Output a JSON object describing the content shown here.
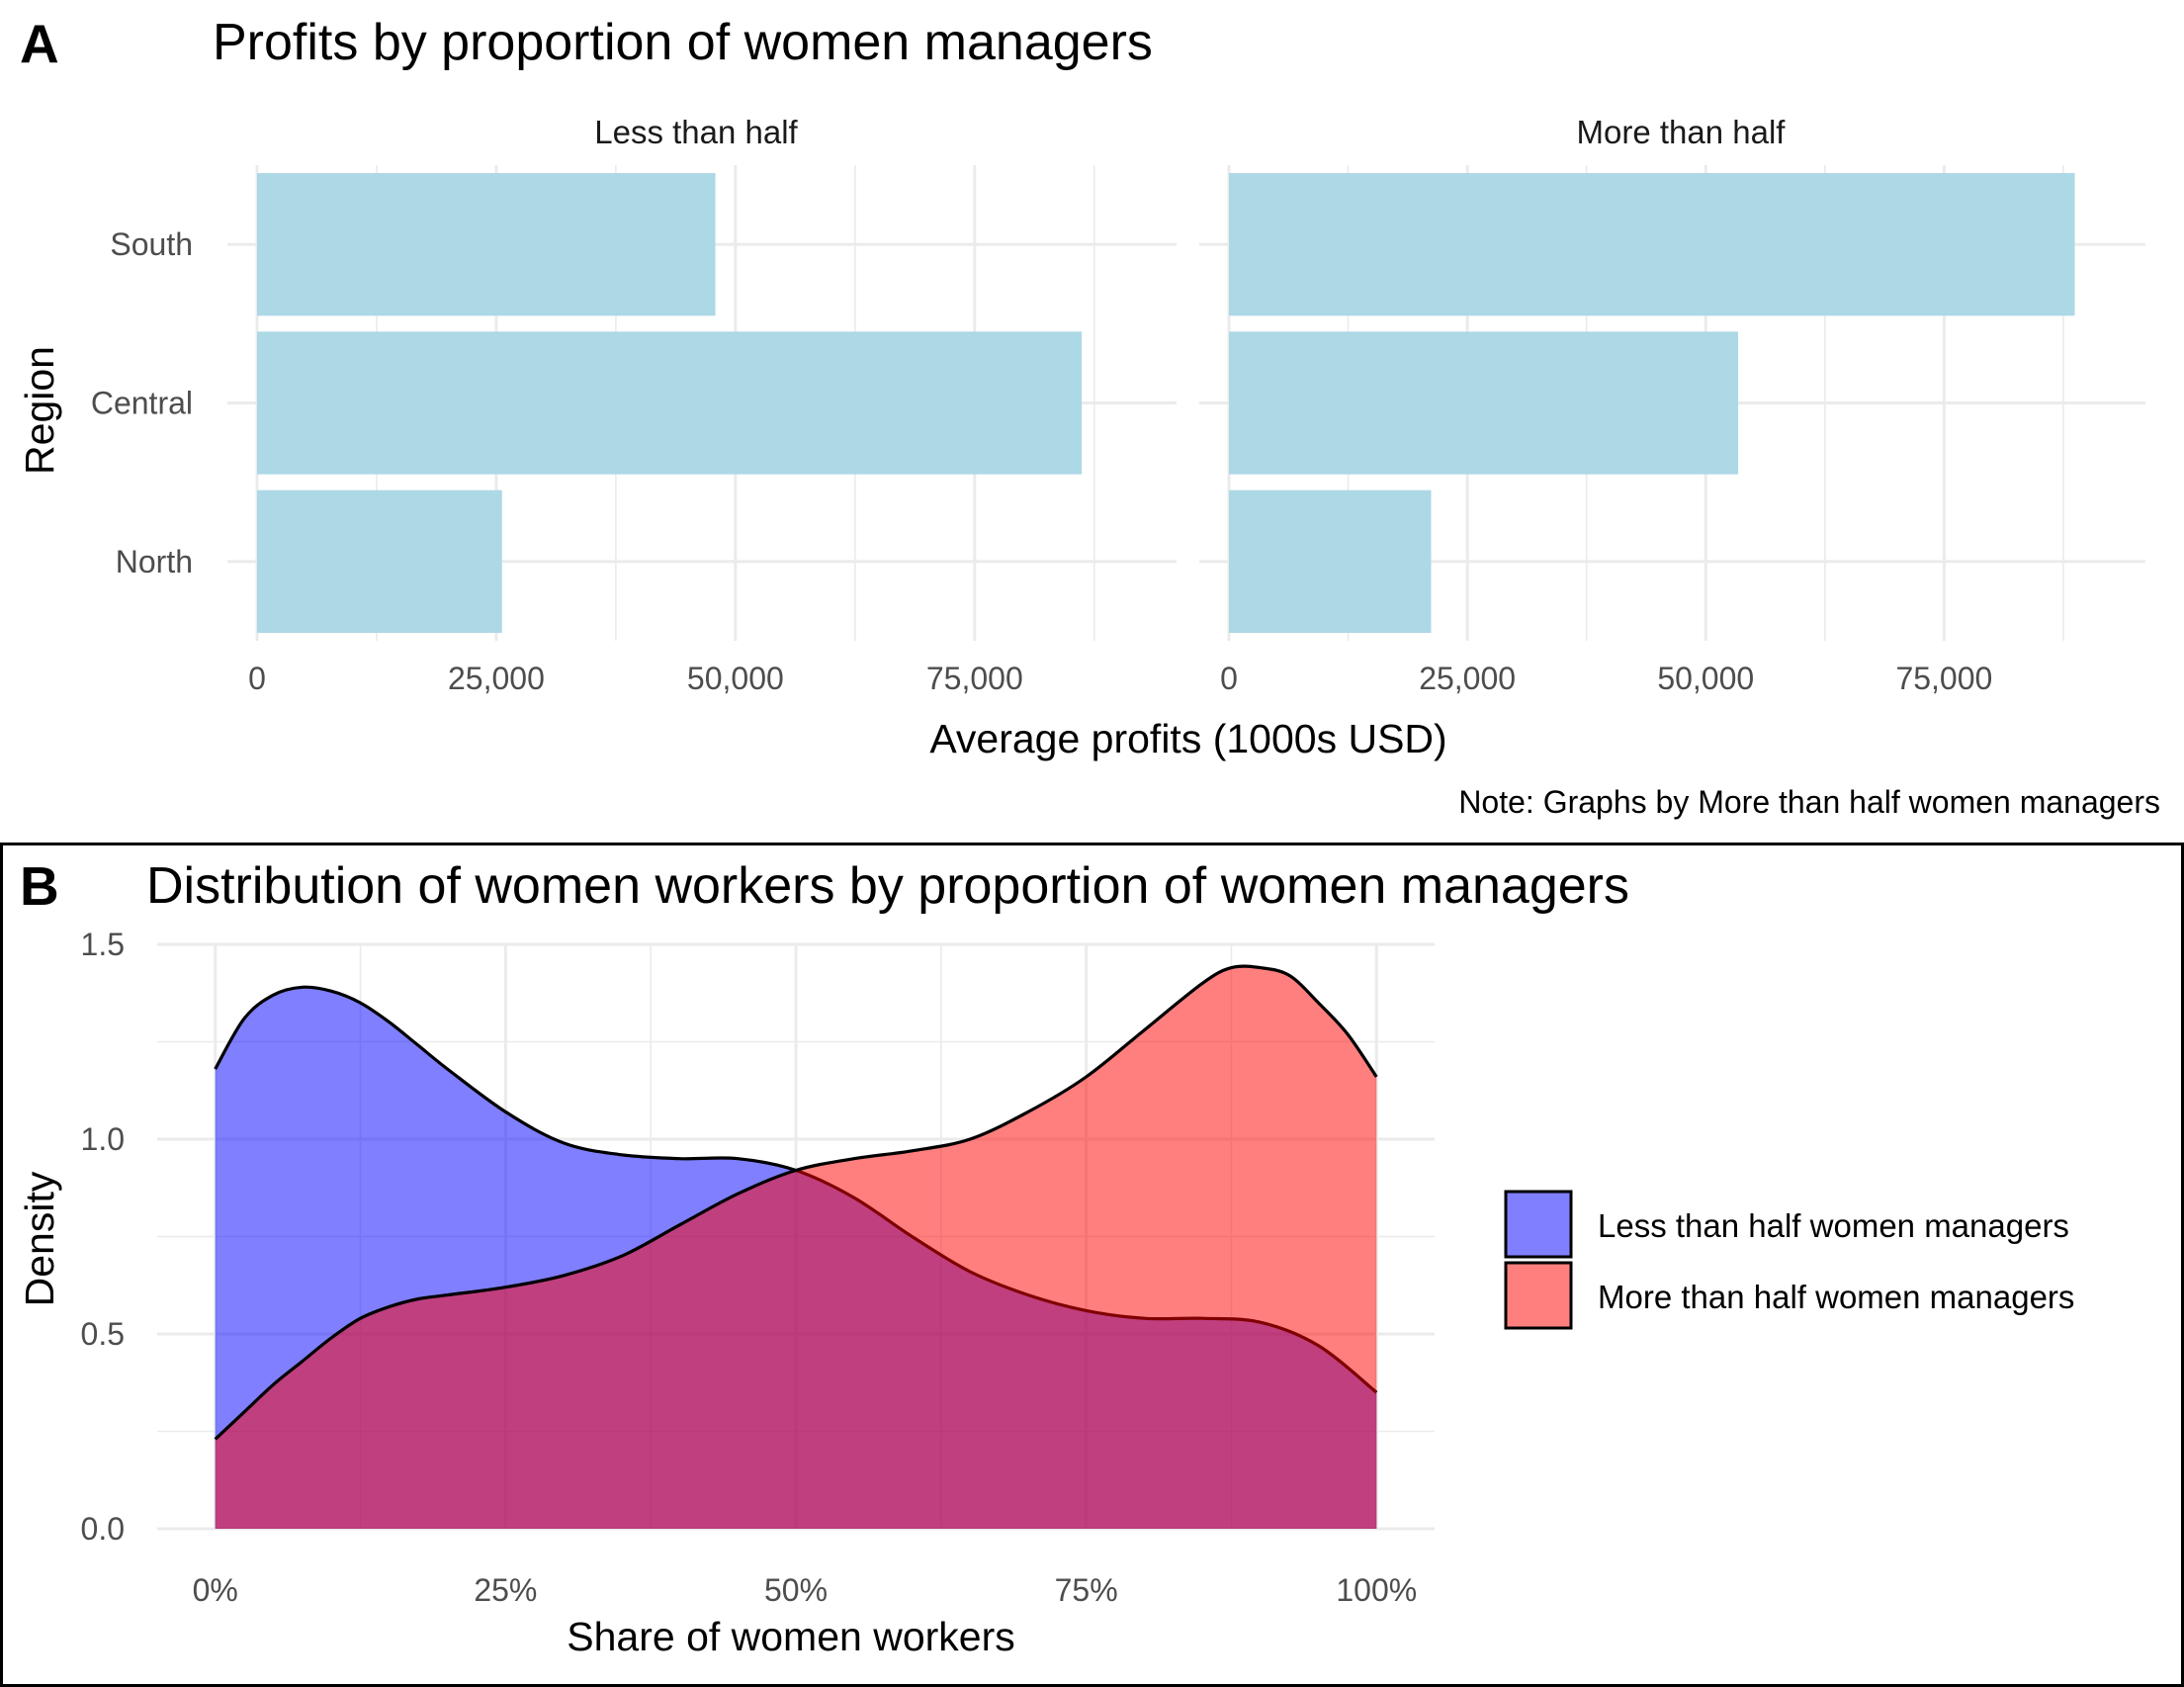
{
  "panel_a": {
    "letter": "A",
    "title": "Profits by proportion of women managers",
    "xlabel": "Average profits (1000s USD)",
    "ylabel": "Region",
    "note": "Note: Graphs by More than half women managers",
    "bar_color": "#add8e6"
  },
  "panel_b": {
    "letter": "B",
    "title": "Distribution of women workers by proportion of women managers",
    "xlabel": "Share of women workers",
    "ylabel": "Density",
    "colors": {
      "Less than half women managers": "#7f7fff",
      "More than half women managers": "#ff7f7f",
      "overlap": "#bf3f7f"
    }
  },
  "chart_data": [
    {
      "type": "bar",
      "orientation": "horizontal",
      "facets": [
        {
          "label": "Less than half",
          "categories": [
            "South",
            "Central",
            "North"
          ],
          "values": [
            47900,
            86200,
            25600
          ]
        },
        {
          "label": "More than half",
          "categories": [
            "South",
            "Central",
            "North"
          ],
          "values": [
            88700,
            53400,
            21200
          ]
        }
      ],
      "xlim": [
        0,
        93000
      ],
      "x_ticks": [
        0,
        25000,
        50000,
        75000
      ],
      "x_tick_labels": [
        "0",
        "25,000",
        "50,000",
        "75,000"
      ],
      "grid": true
    },
    {
      "type": "area",
      "subtype": "density",
      "x_ticks": [
        0,
        0.25,
        0.5,
        0.75,
        1.0
      ],
      "x_tick_labels": [
        "0%",
        "25%",
        "50%",
        "75%",
        "100%"
      ],
      "y_ticks": [
        0,
        0.5,
        1.0,
        1.5
      ],
      "y_tick_labels": [
        "0.0",
        "0.5",
        "1.0",
        "1.5"
      ],
      "xlim": [
        -0.05,
        1.05
      ],
      "ylim": [
        0,
        1.5
      ],
      "legend_position": "right",
      "grid": true,
      "series": [
        {
          "name": "Less than half women managers",
          "x": [
            0,
            0.025,
            0.05,
            0.075,
            0.1,
            0.125,
            0.15,
            0.175,
            0.2,
            0.25,
            0.3,
            0.35,
            0.4,
            0.45,
            0.5,
            0.55,
            0.6,
            0.65,
            0.7,
            0.75,
            0.8,
            0.85,
            0.9,
            0.95,
            1.0
          ],
          "y": [
            1.18,
            1.31,
            1.37,
            1.39,
            1.38,
            1.35,
            1.3,
            1.24,
            1.18,
            1.07,
            0.99,
            0.96,
            0.95,
            0.95,
            0.92,
            0.85,
            0.75,
            0.66,
            0.6,
            0.56,
            0.54,
            0.54,
            0.53,
            0.47,
            0.35
          ]
        },
        {
          "name": "More than half women managers",
          "x": [
            0,
            0.025,
            0.05,
            0.075,
            0.1,
            0.125,
            0.15,
            0.175,
            0.2,
            0.25,
            0.3,
            0.35,
            0.4,
            0.45,
            0.5,
            0.55,
            0.6,
            0.65,
            0.7,
            0.75,
            0.8,
            0.85,
            0.875,
            0.9,
            0.925,
            0.95,
            0.975,
            1.0
          ],
          "y": [
            0.23,
            0.3,
            0.37,
            0.43,
            0.49,
            0.54,
            0.57,
            0.59,
            0.6,
            0.62,
            0.65,
            0.7,
            0.78,
            0.86,
            0.92,
            0.95,
            0.97,
            1.0,
            1.07,
            1.16,
            1.28,
            1.4,
            1.44,
            1.44,
            1.42,
            1.35,
            1.27,
            1.16
          ]
        }
      ]
    }
  ]
}
